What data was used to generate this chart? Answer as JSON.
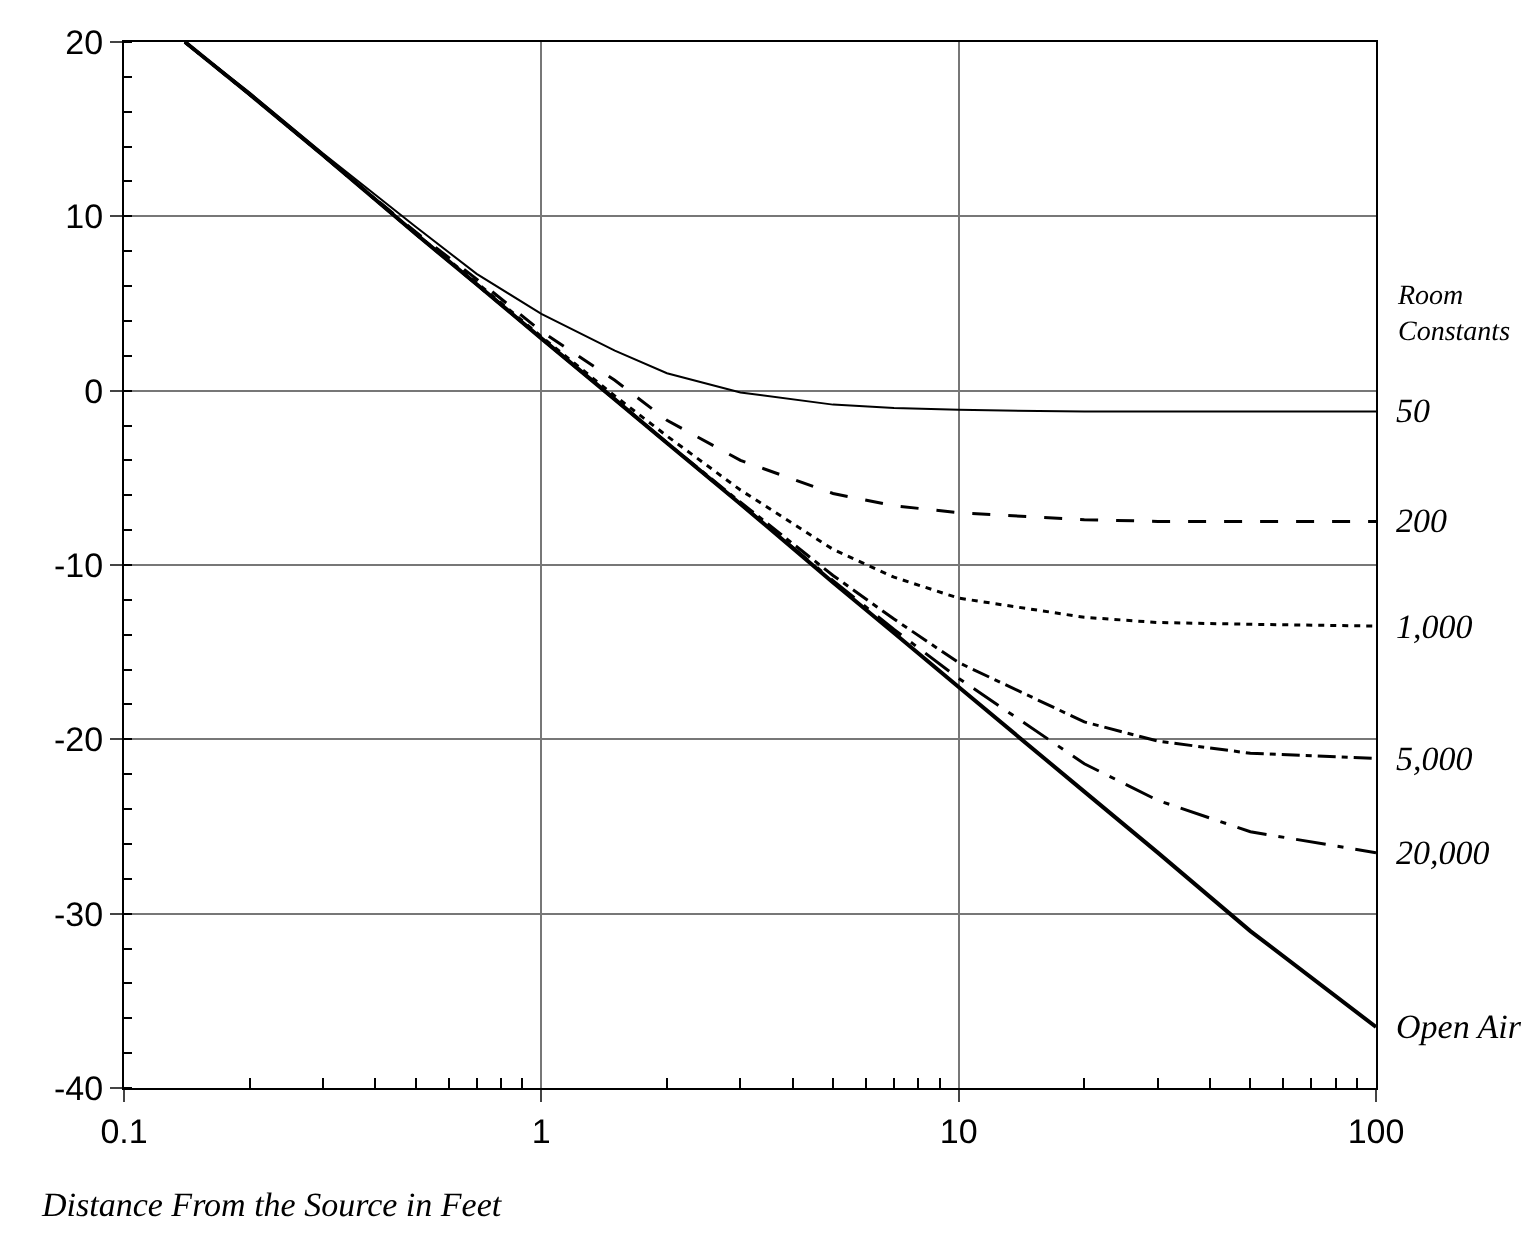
{
  "chart_data": {
    "type": "line",
    "xlabel": "Distance From the Source in Feet",
    "log": "x",
    "grid": true,
    "legend": false,
    "marker": "none",
    "xlim": [
      0.1,
      100
    ],
    "xticks": [
      0.1,
      1,
      10,
      100
    ],
    "ylim": [
      -40,
      20
    ],
    "yticks": [
      -40,
      -30,
      -20,
      -10,
      0,
      10,
      20
    ],
    "annotations": [
      "Room Constants"
    ],
    "x": [
      0.14,
      0.2,
      0.3,
      0.5,
      0.7,
      1,
      1.5,
      2,
      3,
      5,
      7,
      10,
      20,
      30,
      50,
      100
    ],
    "series": [
      {
        "name": "50",
        "color": "#000000",
        "line_style": "solid",
        "values": [
          20.0,
          17.1,
          13.6,
          9.4,
          6.7,
          4.4,
          2.3,
          1.0,
          -0.1,
          -0.8,
          -1.0,
          -1.1,
          -1.2,
          -1.2,
          -1.2,
          -1.2
        ]
      },
      {
        "name": "200",
        "color": "#000000",
        "line_style": "dashed",
        "values": [
          20.0,
          17.0,
          13.5,
          9.1,
          6.4,
          3.4,
          0.6,
          -1.7,
          -4.0,
          -5.9,
          -6.6,
          -7.0,
          -7.4,
          -7.5,
          -7.5,
          -7.5
        ]
      },
      {
        "name": "1,000",
        "color": "#000000",
        "line_style": "dotted",
        "values": [
          20.0,
          17.0,
          13.5,
          9.0,
          6.2,
          3.1,
          -0.3,
          -2.6,
          -5.7,
          -9.1,
          -10.7,
          -11.9,
          -13.0,
          -13.3,
          -13.4,
          -13.5
        ]
      },
      {
        "name": "5,000",
        "color": "#000000",
        "line_style": "dashdot",
        "values": [
          20.0,
          17.0,
          13.5,
          9.0,
          6.1,
          3.0,
          -0.5,
          -3.0,
          -6.4,
          -10.6,
          -13.1,
          -15.6,
          -19.0,
          -20.1,
          -20.8,
          -21.1
        ]
      },
      {
        "name": "20,000",
        "color": "#000000",
        "line_style": "longdashdot",
        "values": [
          20.0,
          17.0,
          13.5,
          9.0,
          6.1,
          3.0,
          -0.5,
          -3.0,
          -6.5,
          -10.9,
          -13.7,
          -16.5,
          -21.4,
          -23.5,
          -25.3,
          -26.5
        ]
      },
      {
        "name": "Open Air",
        "color": "#000000",
        "line_style": "solid",
        "values": [
          20.0,
          17.0,
          13.5,
          9.0,
          6.1,
          3.0,
          -0.5,
          -3.0,
          -6.5,
          -11.0,
          -13.9,
          -17.0,
          -23.0,
          -26.5,
          -31.0,
          -36.5
        ]
      }
    ]
  }
}
